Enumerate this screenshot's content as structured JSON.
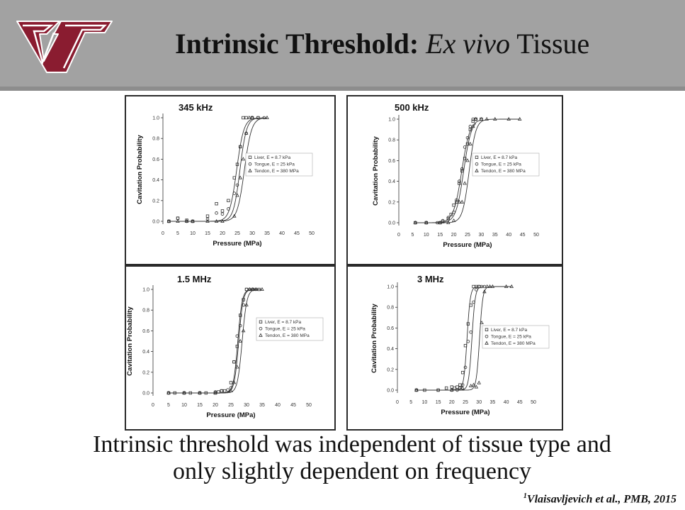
{
  "slide": {
    "title_bold": "Intrinsic Threshold:",
    "title_italic": "Ex vivo",
    "title_rest": "Tissue",
    "caption_line1": "Intrinsic threshold was independent of tissue type and",
    "caption_line2": "only slightly dependent on frequency",
    "citation_marker": "1",
    "citation_text": "Vlaisavljevich et al., PMB, 2015",
    "logo": "vt-logo",
    "colors": {
      "header": "#a2a2a2",
      "logo": "#8a1c30",
      "plot": "#333333"
    }
  },
  "chart_data": [
    {
      "type": "scatter",
      "title": "345 kHz",
      "xlabel": "Pressure (MPa)",
      "ylabel": "Cavitation Probability",
      "xlim": [
        0,
        50
      ],
      "ylim": [
        0,
        1
      ],
      "xticks": [
        "0",
        "5",
        "10",
        "15",
        "20",
        "25",
        "30",
        "35",
        "40",
        "45",
        "50"
      ],
      "yticks": [
        "0.0",
        "0.2",
        "0.4",
        "0.6",
        "0.8",
        "1.0"
      ],
      "legend_position": "right",
      "series": [
        {
          "name": "Liver, E = 8.7 kPa",
          "marker": "square",
          "fit_center": 24.8,
          "fit_width": 1.2,
          "x": [
            2,
            5,
            8,
            10,
            15,
            18,
            20,
            22,
            24,
            25,
            26,
            27,
            28,
            30,
            32
          ],
          "y": [
            0,
            0.03,
            0.01,
            0,
            0.05,
            0.17,
            0.1,
            0.2,
            0.42,
            0.55,
            0.72,
            1,
            1,
            1,
            1
          ]
        },
        {
          "name": "Tongue, E = 25 kPa",
          "marker": "circle",
          "fit_center": 25.9,
          "fit_width": 1.1,
          "x": [
            2,
            5,
            8,
            10,
            15,
            18,
            20,
            22,
            24,
            25,
            26,
            28,
            30,
            32,
            34
          ],
          "y": [
            0,
            0.03,
            0,
            0,
            0.02,
            0.08,
            0.07,
            0.12,
            0.27,
            0.35,
            0.72,
            0.85,
            1,
            1,
            1
          ]
        },
        {
          "name": "Tendon, E = 380 MPa",
          "marker": "triangle",
          "fit_center": 27.4,
          "fit_width": 1.2,
          "x": [
            2,
            5,
            8,
            10,
            15,
            18,
            20,
            24,
            25,
            26,
            27,
            28,
            29,
            30,
            35
          ],
          "y": [
            0,
            0,
            0,
            0,
            0,
            0,
            0,
            0.05,
            0.25,
            0.42,
            0.6,
            0.85,
            1,
            1,
            1
          ]
        }
      ]
    },
    {
      "type": "scatter",
      "title": "500 kHz",
      "xlabel": "Pressure (MPa)",
      "ylabel": "Cavitation Probability",
      "xlim": [
        0,
        50
      ],
      "ylim": [
        0,
        1
      ],
      "xticks": [
        "0",
        "5",
        "10",
        "15",
        "20",
        "25",
        "30",
        "35",
        "40",
        "45",
        "50"
      ],
      "yticks": [
        "0.0",
        "0.2",
        "0.4",
        "0.6",
        "0.8",
        "1.0"
      ],
      "legend_position": "right",
      "series": [
        {
          "name": "Liver, E = 8.7 kPa",
          "marker": "square",
          "fit_center": 22.9,
          "fit_width": 1.5,
          "x": [
            6,
            10,
            15,
            16,
            18,
            19,
            20,
            21,
            22,
            23,
            24,
            25,
            26,
            27,
            28,
            30
          ],
          "y": [
            0,
            0,
            0,
            0.01,
            0.04,
            0.08,
            0.17,
            0.2,
            0.38,
            0.5,
            0.62,
            0.76,
            0.9,
            0.98,
            1,
            1
          ]
        },
        {
          "name": "Tongue, E = 25 kPa",
          "marker": "circle",
          "fit_center": 23.6,
          "fit_width": 1.4,
          "x": [
            6,
            10,
            14,
            16,
            18,
            20,
            21,
            22,
            23,
            24,
            25,
            26,
            27,
            28
          ],
          "y": [
            0,
            0,
            0,
            0.02,
            0.05,
            0.1,
            0.22,
            0.4,
            0.52,
            0.73,
            0.82,
            0.93,
            1,
            1
          ]
        },
        {
          "name": "Tendon, E = 380 MPa",
          "marker": "triangle",
          "fit_center": 25.6,
          "fit_width": 1.2,
          "x": [
            6,
            10,
            15,
            18,
            20,
            22,
            23,
            24,
            25,
            26,
            27,
            28,
            30,
            32,
            35,
            40,
            44
          ],
          "y": [
            0,
            0,
            0,
            0,
            0.02,
            0.2,
            0.2,
            0.38,
            0.6,
            0.76,
            0.93,
            1,
            1,
            1,
            1,
            1,
            1
          ]
        }
      ]
    },
    {
      "type": "scatter",
      "title": "1.5 MHz",
      "xlabel": "Pressure (MPa)",
      "ylabel": "Cavitation Probability",
      "xlim": [
        0,
        50
      ],
      "ylim": [
        0,
        1
      ],
      "xticks": [
        "0",
        "5",
        "10",
        "15",
        "20",
        "25",
        "30",
        "35",
        "40",
        "45",
        "50"
      ],
      "yticks": [
        "0.0",
        "0.2",
        "0.4",
        "0.6",
        "0.8",
        "1.0"
      ],
      "legend_position": "right",
      "series": [
        {
          "name": "Liver, E = 8.7 kPa",
          "marker": "square",
          "fit_center": 27.2,
          "fit_width": 0.7,
          "x": [
            5,
            7,
            10,
            12,
            15,
            17,
            20,
            21,
            22,
            23,
            25,
            26,
            27,
            28,
            29,
            30,
            32,
            34
          ],
          "y": [
            0,
            0,
            0,
            0,
            0,
            0,
            0,
            0.01,
            0.02,
            0.02,
            0.1,
            0.3,
            0.45,
            0.75,
            0.9,
            1,
            1,
            1
          ]
        },
        {
          "name": "Tongue, E = 25 kPa",
          "marker": "circle",
          "fit_center": 27.5,
          "fit_width": 0.7,
          "x": [
            5,
            10,
            15,
            20,
            22,
            24,
            25,
            26,
            27,
            28,
            29,
            30,
            31,
            33
          ],
          "y": [
            0,
            0,
            0,
            0.01,
            0.02,
            0.03,
            0.05,
            0.3,
            0.55,
            0.65,
            0.85,
            1,
            1,
            1
          ]
        },
        {
          "name": "Tendon, E = 380 MPa",
          "marker": "triangle",
          "fit_center": 28.6,
          "fit_width": 0.75,
          "x": [
            5,
            10,
            15,
            20,
            25,
            26,
            27,
            28,
            29,
            30,
            31,
            32,
            33,
            35
          ],
          "y": [
            0,
            0,
            0,
            0,
            0.02,
            0.1,
            0.25,
            0.5,
            0.6,
            0.85,
            1,
            1,
            1,
            1
          ]
        }
      ]
    },
    {
      "type": "scatter",
      "title": "3 MHz",
      "xlabel": "Pressure (MPa)",
      "ylabel": "Cavitation Probability",
      "xlim": [
        0,
        50
      ],
      "ylim": [
        0,
        1
      ],
      "xticks": [
        "0",
        "5",
        "10",
        "15",
        "20",
        "25",
        "30",
        "35",
        "40",
        "45",
        "50"
      ],
      "yticks": [
        "0.0",
        "0.2",
        "0.4",
        "0.6",
        "0.8",
        "1.0"
      ],
      "legend_position": "right",
      "series": [
        {
          "name": "Liver, E = 8.7 kPa",
          "marker": "square",
          "fit_center": 25.6,
          "fit_width": 0.6,
          "x": [
            7,
            10,
            15,
            18,
            20,
            21,
            22,
            23,
            24,
            25,
            26,
            27,
            28,
            29,
            30
          ],
          "y": [
            0,
            0,
            0,
            0.02,
            0.03,
            0.02,
            0.03,
            0.05,
            0.17,
            0.43,
            0.64,
            0.82,
            1,
            1,
            1
          ]
        },
        {
          "name": "Tongue, E = 25 kPa",
          "marker": "circle",
          "fit_center": 27.4,
          "fit_width": 0.6,
          "x": [
            7,
            15,
            20,
            22,
            23,
            24,
            25,
            26,
            27,
            28,
            29,
            30,
            31,
            32
          ],
          "y": [
            0,
            0,
            0,
            0,
            0.02,
            0.05,
            0.22,
            0.47,
            0.56,
            0.85,
            0.97,
            1,
            1,
            1
          ]
        },
        {
          "name": "Tendon, E = 380 MPa",
          "marker": "triangle",
          "fit_center": 30.2,
          "fit_width": 0.6,
          "x": [
            7,
            20,
            24,
            27,
            28,
            29,
            30,
            31,
            32,
            33,
            34,
            35,
            40,
            42
          ],
          "y": [
            0,
            0,
            0.02,
            0.04,
            0.05,
            0.03,
            0.07,
            0.65,
            0.95,
            1,
            1,
            1,
            1,
            1
          ]
        }
      ]
    }
  ]
}
